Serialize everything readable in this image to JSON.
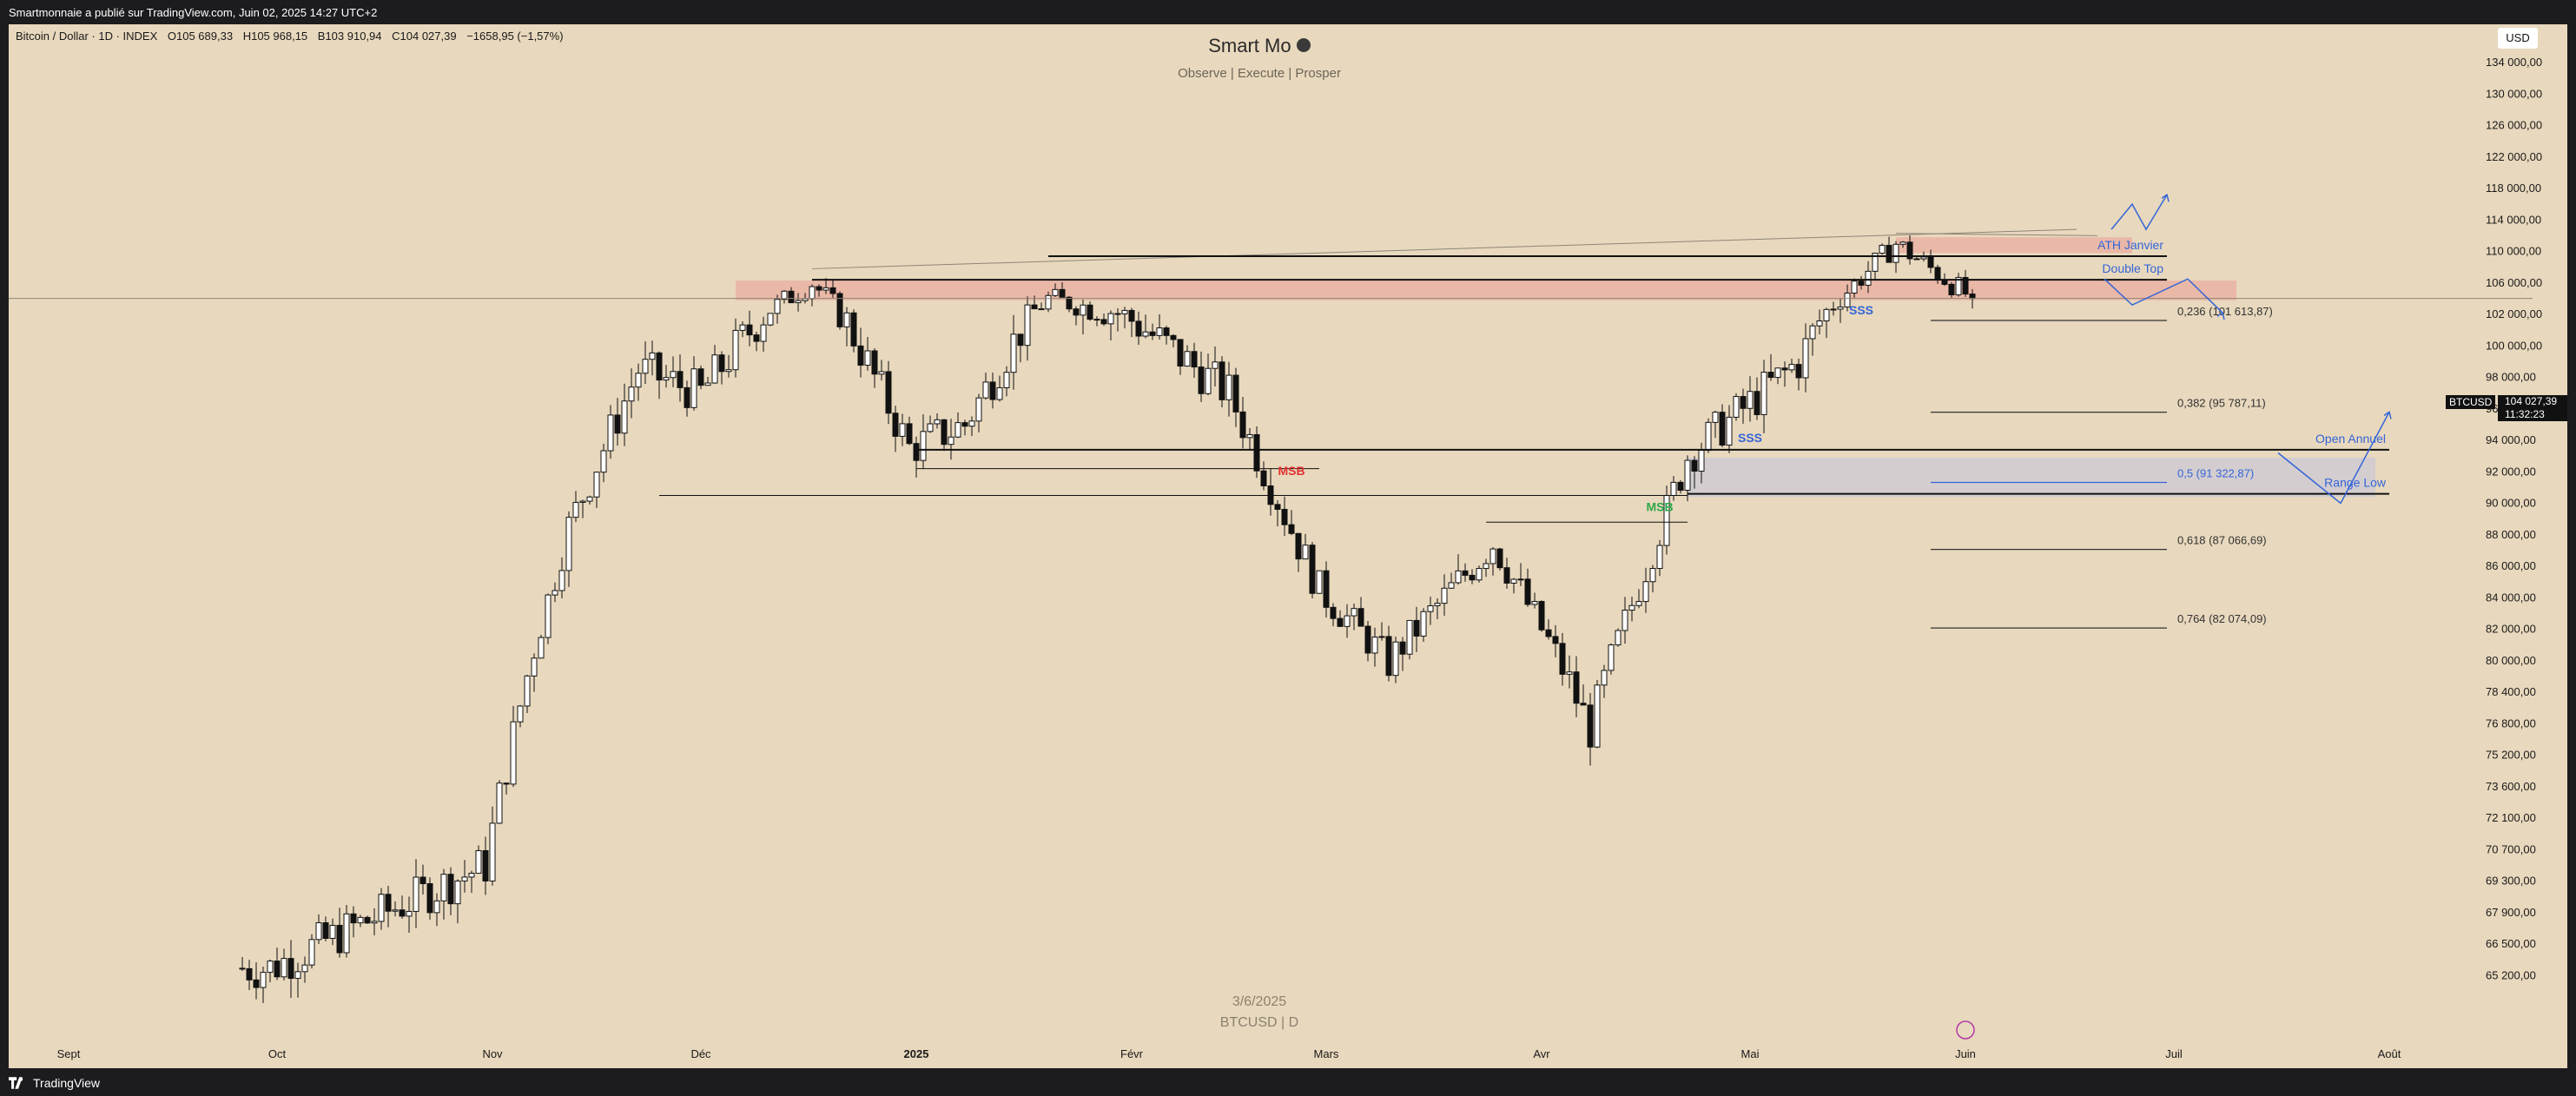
{
  "topbar": {
    "text": "Smartmonnaie a publié sur TradingView.com, Juin 02, 2025 14:27 UTC+2"
  },
  "legend": {
    "symbol": "Bitcoin / Dollar · 1D · INDEX",
    "open": "O105 689,33",
    "high": "H105 968,15",
    "low": "B103 910,94",
    "close": "C104 027,39",
    "change": "−1658,95 (−1,57%)"
  },
  "title": {
    "name": "Smart Mo",
    "subtitle": "Observe |  Execute |  Prosper"
  },
  "currency": "USD",
  "symbol_badge": "BTCUSD",
  "last_price": {
    "price": "104 027,39",
    "countdown": "11:32:23"
  },
  "watermark": {
    "date": "3/6/2025",
    "symbol": "BTCUSD | D"
  },
  "brand": "TradingView",
  "colors": {
    "background": "#e8d8bd",
    "candle": "#111111",
    "zone_red": "#eab3a3",
    "zone_grey": "#cfcbd3",
    "accent_blue": "#3465d8",
    "msb_red": "#e03030",
    "msb_green": "#2ea84a"
  },
  "chart_data": {
    "type": "candlestick",
    "symbol": "BTCUSD",
    "interval": "1D",
    "yaxis": {
      "ticks": [
        {
          "value": 134000,
          "label": "134 000,00"
        },
        {
          "value": 130000,
          "label": "130 000,00"
        },
        {
          "value": 126000,
          "label": "126 000,00"
        },
        {
          "value": 122000,
          "label": "122 000,00"
        },
        {
          "value": 118000,
          "label": "118 000,00"
        },
        {
          "value": 114000,
          "label": "114 000,00"
        },
        {
          "value": 110000,
          "label": "110 000,00"
        },
        {
          "value": 106000,
          "label": "106 000,00"
        },
        {
          "value": 102000,
          "label": "102 000,00"
        },
        {
          "value": 100000,
          "label": "100 000,00"
        },
        {
          "value": 98000,
          "label": "98 000,00"
        },
        {
          "value": 96000,
          "label": "96 000,00"
        },
        {
          "value": 94000,
          "label": "94 000,00"
        },
        {
          "value": 92000,
          "label": "92 000,00"
        },
        {
          "value": 90000,
          "label": "90 000,00"
        },
        {
          "value": 88000,
          "label": "88 000,00"
        },
        {
          "value": 86000,
          "label": "86 000,00"
        },
        {
          "value": 84000,
          "label": "84 000,00"
        },
        {
          "value": 82000,
          "label": "82 000,00"
        },
        {
          "value": 80000,
          "label": "80 000,00"
        },
        {
          "value": 78400,
          "label": "78 400,00"
        },
        {
          "value": 76800,
          "label": "76 800,00"
        },
        {
          "value": 75200,
          "label": "75 200,00"
        },
        {
          "value": 73600,
          "label": "73 600,00"
        },
        {
          "value": 72100,
          "label": "72 100,00"
        },
        {
          "value": 70700,
          "label": "70 700,00"
        },
        {
          "value": 69300,
          "label": "69 300,00"
        },
        {
          "value": 67900,
          "label": "67 900,00"
        },
        {
          "value": 66500,
          "label": "66 500,00"
        },
        {
          "value": 65200,
          "label": "65 200,00"
        }
      ]
    },
    "xaxis": {
      "ticks": [
        {
          "date": "2024-09-01",
          "label": "Sept",
          "bold": false
        },
        {
          "date": "2024-10-01",
          "label": "Oct",
          "bold": false
        },
        {
          "date": "2024-11-01",
          "label": "Nov",
          "bold": false
        },
        {
          "date": "2024-12-01",
          "label": "Déc",
          "bold": false
        },
        {
          "date": "2025-01-01",
          "label": "2025",
          "bold": true
        },
        {
          "date": "2025-02-01",
          "label": "Févr",
          "bold": false
        },
        {
          "date": "2025-03-01",
          "label": "Mars",
          "bold": false
        },
        {
          "date": "2025-04-01",
          "label": "Avr",
          "bold": false
        },
        {
          "date": "2025-05-01",
          "label": "Mai",
          "bold": false
        },
        {
          "date": "2025-06-01",
          "label": "Juin",
          "bold": false
        },
        {
          "date": "2025-07-01",
          "label": "Juil",
          "bold": false
        },
        {
          "date": "2025-08-01",
          "label": "Août",
          "bold": false
        }
      ]
    },
    "anchors": [
      {
        "date": "2024-09-30",
        "price": 65500,
        "label": "sep-end"
      },
      {
        "date": "2024-10-31",
        "price": 70000,
        "label": "oct-end"
      },
      {
        "date": "2024-11-12",
        "price": 88500,
        "label": "nov-rally"
      },
      {
        "date": "2024-11-22",
        "price": 98500,
        "label": "nov-top"
      },
      {
        "date": "2024-12-01",
        "price": 97000,
        "label": "dec-start"
      },
      {
        "date": "2024-12-17",
        "price": 106000,
        "label": "dec-high"
      },
      {
        "date": "2024-12-31",
        "price": 93500,
        "label": "dec-end"
      },
      {
        "date": "2025-01-08",
        "price": 95000,
        "label": "jan-dip"
      },
      {
        "date": "2025-01-20",
        "price": 104000,
        "label": "jan-high"
      },
      {
        "date": "2025-01-31",
        "price": 102000,
        "label": "jan-end"
      },
      {
        "date": "2025-02-15",
        "price": 97000,
        "label": "feb-mid"
      },
      {
        "date": "2025-02-28",
        "price": 84500,
        "label": "feb-end"
      },
      {
        "date": "2025-03-10",
        "price": 80000,
        "label": "mar-low"
      },
      {
        "date": "2025-03-25",
        "price": 87500,
        "label": "mar-bounce"
      },
      {
        "date": "2025-04-08",
        "price": 76500,
        "label": "apr-low"
      },
      {
        "date": "2025-04-22",
        "price": 93000,
        "label": "apr-rally"
      },
      {
        "date": "2025-05-08",
        "price": 99000,
        "label": "may-break"
      },
      {
        "date": "2025-05-22",
        "price": 111000,
        "label": "may-ath"
      },
      {
        "date": "2025-06-02",
        "price": 104027,
        "label": "last"
      }
    ],
    "zones": [
      {
        "name": "supply-zone",
        "from": "2024-12-06",
        "to": "2025-07-10",
        "low": 103800,
        "high": 106300,
        "color": "#eab3a3"
      },
      {
        "name": "ath-zone",
        "from": "2025-05-22",
        "to": "2025-06-25",
        "low": 109800,
        "high": 111800,
        "color": "#eab3a3"
      },
      {
        "name": "range-low-zone",
        "from": "2025-04-22",
        "to": "2025-07-30",
        "low": 90400,
        "high": 92900,
        "color": "#cfcbd3"
      }
    ],
    "levels": [
      {
        "name": "ath-janvier-line",
        "from": "2025-01-20",
        "to": "2025-06-30",
        "price": 109400,
        "label": "ATH Janvier"
      },
      {
        "name": "double-top-line",
        "from": "2024-12-17",
        "to": "2025-06-30",
        "price": 106400,
        "label": "Double Top"
      },
      {
        "name": "open-annuel-line",
        "from": "2025-01-01",
        "to": "2025-08-01",
        "price": 93400,
        "label": "Open Annuel"
      },
      {
        "name": "range-low-line",
        "from": "2025-04-22",
        "to": "2025-08-01",
        "price": 90600,
        "label": "Range Low"
      },
      {
        "name": "mid-range-line",
        "from": "2025-01-01",
        "to": "2025-02-28",
        "price": 92200,
        "label": ""
      },
      {
        "name": "nov-low-line",
        "from": "2024-11-25",
        "to": "2025-04-22",
        "price": 90500,
        "label": ""
      },
      {
        "name": "msb-green-line",
        "from": "2025-03-24",
        "to": "2025-04-22",
        "price": 88800,
        "label": ""
      }
    ],
    "fib": [
      {
        "ratio": "0,236",
        "value": "101 613,87",
        "price": 101614
      },
      {
        "ratio": "0,382",
        "value": "95 787,11",
        "price": 95787
      },
      {
        "ratio": "0,5",
        "value": "91 322,87",
        "price": 91323
      },
      {
        "ratio": "0,618",
        "value": "87 066,69",
        "price": 87067
      },
      {
        "ratio": "0,764",
        "value": "82 074,09",
        "price": 82074
      }
    ],
    "annotations": [
      {
        "text": "MSB",
        "date": "2025-02-24",
        "price": 91800,
        "color": "#e03030"
      },
      {
        "text": "MSB",
        "date": "2025-04-18",
        "price": 89500,
        "color": "#2ea84a"
      },
      {
        "text": "SSS",
        "date": "2025-05-17",
        "price": 102000,
        "color": "#3465d8"
      },
      {
        "text": "SSS",
        "date": "2025-05-01",
        "price": 93900,
        "color": "#3465d8"
      }
    ],
    "trendlines": [
      {
        "from_date": "2024-12-17",
        "from_price": 107800,
        "to_date": "2025-06-17",
        "to_price": 112800
      },
      {
        "from_date": "2025-05-22",
        "from_price": 112300,
        "to_date": "2025-06-20",
        "to_price": 112000
      }
    ],
    "projections": [
      {
        "name": "projection-top",
        "points": [
          [
            "2025-06-22",
            112800
          ],
          [
            "2025-06-25",
            116000
          ],
          [
            "2025-06-27",
            112800
          ],
          [
            "2025-06-30",
            117200
          ]
        ]
      },
      {
        "name": "projection-middle",
        "points": [
          [
            "2025-06-21",
            106500
          ],
          [
            "2025-06-25",
            103200
          ],
          [
            "2025-07-03",
            106500
          ],
          [
            "2025-07-08",
            102200
          ]
        ]
      },
      {
        "name": "projection-bottom",
        "points": [
          [
            "2025-07-16",
            93200
          ],
          [
            "2025-07-25",
            90000
          ],
          [
            "2025-08-01",
            95800
          ]
        ]
      }
    ],
    "last_price": 104027.39
  }
}
